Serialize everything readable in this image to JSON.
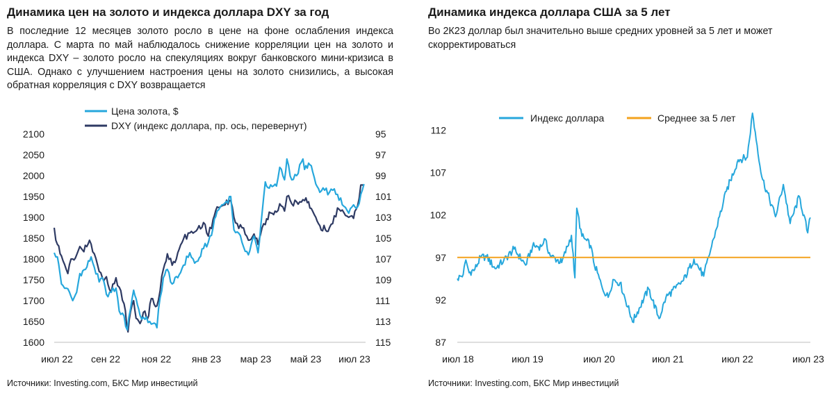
{
  "left": {
    "title": "Динамика цен на золото и индекса доллара DXY за год",
    "subtitle": "В последние 12 месяцев золото росло в цене на фоне ослабления индекса доллара. С марта по май наблюдалось снижение корреляции цен на золото и индекса DXY – золото росло на спекуляциях вокруг банковского мини-кризиса в США. Однако с улучшением настроения цены на золото снизились, а высокая обратная корреляция с DXY возвращается",
    "source": "Источники: Investing.com, БКС Мир инвестиций"
  },
  "right": {
    "title": "Динамика индекса доллара США за 5 лет",
    "subtitle_line1": "Во 2К23 доллар был значительно выше средних уровней за 5 лет и может",
    "subtitle_line2": "скорректироваться",
    "source": "Источники: Investing.com, БКС Мир инвестиций"
  },
  "chart_data": [
    {
      "type": "line",
      "x_tick_labels": [
        "июл 22",
        "сен 22",
        "ноя 22",
        "янв 23",
        "мар 23",
        "май 23",
        "июл 23"
      ],
      "y_left_ticks": [
        1600,
        1650,
        1700,
        1750,
        1800,
        1850,
        1900,
        1950,
        2000,
        2050,
        2100
      ],
      "y_right_ticks": [
        95,
        97,
        99,
        101,
        103,
        105,
        107,
        109,
        111,
        113,
        115
      ],
      "y_left_range": [
        1600,
        2100
      ],
      "y_right_range": [
        95,
        115
      ],
      "y_right_inverted": true,
      "grid": false,
      "legend_position": "top",
      "series": [
        {
          "name": "Цена золота, $",
          "axis": "left",
          "color": "#26a7dc",
          "points": [
            [
              "2022-06-27",
              1815
            ],
            [
              "2022-07-01",
              1805
            ],
            [
              "2022-07-06",
              1740
            ],
            [
              "2022-07-12",
              1730
            ],
            [
              "2022-07-18",
              1710
            ],
            [
              "2022-07-20",
              1700
            ],
            [
              "2022-07-25",
              1720
            ],
            [
              "2022-07-29",
              1765
            ],
            [
              "2022-08-05",
              1775
            ],
            [
              "2022-08-12",
              1805
            ],
            [
              "2022-08-16",
              1780
            ],
            [
              "2022-08-22",
              1745
            ],
            [
              "2022-08-26",
              1755
            ],
            [
              "2022-08-31",
              1715
            ],
            [
              "2022-09-06",
              1720
            ],
            [
              "2022-09-12",
              1730
            ],
            [
              "2022-09-16",
              1675
            ],
            [
              "2022-09-20",
              1670
            ],
            [
              "2022-09-26",
              1630
            ],
            [
              "2022-09-28",
              1660
            ],
            [
              "2022-10-04",
              1725
            ],
            [
              "2022-10-07",
              1705
            ],
            [
              "2022-10-12",
              1665
            ],
            [
              "2022-10-18",
              1655
            ],
            [
              "2022-10-24",
              1650
            ],
            [
              "2022-10-28",
              1645
            ],
            [
              "2022-11-02",
              1635
            ],
            [
              "2022-11-04",
              1680
            ],
            [
              "2022-11-10",
              1755
            ],
            [
              "2022-11-15",
              1775
            ],
            [
              "2022-11-21",
              1740
            ],
            [
              "2022-11-28",
              1755
            ],
            [
              "2022-12-05",
              1785
            ],
            [
              "2022-12-13",
              1815
            ],
            [
              "2022-12-19",
              1790
            ],
            [
              "2022-12-23",
              1795
            ],
            [
              "2022-12-30",
              1825
            ],
            [
              "2023-01-05",
              1840
            ],
            [
              "2023-01-11",
              1875
            ],
            [
              "2023-01-16",
              1915
            ],
            [
              "2023-01-20",
              1925
            ],
            [
              "2023-01-26",
              1935
            ],
            [
              "2023-02-02",
              1950
            ],
            [
              "2023-02-06",
              1870
            ],
            [
              "2023-02-10",
              1865
            ],
            [
              "2023-02-16",
              1840
            ],
            [
              "2023-02-24",
              1810
            ],
            [
              "2023-03-03",
              1855
            ],
            [
              "2023-03-08",
              1815
            ],
            [
              "2023-03-13",
              1910
            ],
            [
              "2023-03-17",
              1985
            ],
            [
              "2023-03-22",
              1970
            ],
            [
              "2023-03-31",
              1975
            ],
            [
              "2023-04-04",
              2020
            ],
            [
              "2023-04-10",
              1990
            ],
            [
              "2023-04-13",
              2040
            ],
            [
              "2023-04-19",
              1990
            ],
            [
              "2023-04-25",
              2000
            ],
            [
              "2023-05-03",
              2040
            ],
            [
              "2023-05-05",
              2015
            ],
            [
              "2023-05-10",
              2030
            ],
            [
              "2023-05-15",
              2010
            ],
            [
              "2023-05-19",
              1980
            ],
            [
              "2023-05-24",
              1960
            ],
            [
              "2023-05-30",
              1965
            ],
            [
              "2023-06-05",
              1960
            ],
            [
              "2023-06-09",
              1965
            ],
            [
              "2023-06-15",
              1955
            ],
            [
              "2023-06-21",
              1930
            ],
            [
              "2023-06-29",
              1910
            ],
            [
              "2023-07-05",
              1930
            ],
            [
              "2023-07-10",
              1925
            ],
            [
              "2023-07-14",
              1955
            ],
            [
              "2023-07-18",
              1980
            ]
          ]
        },
        {
          "name": "DXY (индекс доллара, пр. ось, перевернут)",
          "axis": "right",
          "color": "#2e3a63",
          "points": [
            [
              "2022-06-27",
              104.0
            ],
            [
              "2022-06-29",
              105.2
            ],
            [
              "2022-07-01",
              105.6
            ],
            [
              "2022-07-06",
              106.7
            ],
            [
              "2022-07-12",
              108.0
            ],
            [
              "2022-07-14",
              108.4
            ],
            [
              "2022-07-18",
              107.0
            ],
            [
              "2022-07-20",
              107.0
            ],
            [
              "2022-07-25",
              106.6
            ],
            [
              "2022-07-29",
              105.8
            ],
            [
              "2022-08-03",
              106.3
            ],
            [
              "2022-08-10",
              105.2
            ],
            [
              "2022-08-16",
              106.5
            ],
            [
              "2022-08-22",
              108.2
            ],
            [
              "2022-08-26",
              108.8
            ],
            [
              "2022-08-31",
              108.7
            ],
            [
              "2022-09-06",
              110.2
            ],
            [
              "2022-09-12",
              108.8
            ],
            [
              "2022-09-16",
              109.7
            ],
            [
              "2022-09-22",
              111.3
            ],
            [
              "2022-09-27",
              114.0
            ],
            [
              "2022-09-30",
              112.1
            ],
            [
              "2022-10-04",
              111.0
            ],
            [
              "2022-10-07",
              112.7
            ],
            [
              "2022-10-12",
              113.2
            ],
            [
              "2022-10-18",
              112.0
            ],
            [
              "2022-10-21",
              112.8
            ],
            [
              "2022-10-26",
              110.8
            ],
            [
              "2022-11-02",
              111.5
            ],
            [
              "2022-11-04",
              110.9
            ],
            [
              "2022-11-10",
              108.0
            ],
            [
              "2022-11-15",
              106.5
            ],
            [
              "2022-11-21",
              107.6
            ],
            [
              "2022-11-28",
              106.4
            ],
            [
              "2022-12-05",
              105.1
            ],
            [
              "2022-12-13",
              104.5
            ],
            [
              "2022-12-19",
              104.4
            ],
            [
              "2022-12-30",
              103.5
            ],
            [
              "2023-01-05",
              104.8
            ],
            [
              "2023-01-11",
              103.2
            ],
            [
              "2023-01-16",
              102.0
            ],
            [
              "2023-01-20",
              102.0
            ],
            [
              "2023-01-26",
              101.8
            ],
            [
              "2023-02-02",
              101.4
            ],
            [
              "2023-02-06",
              103.0
            ],
            [
              "2023-02-10",
              103.6
            ],
            [
              "2023-02-16",
              104.0
            ],
            [
              "2023-02-24",
              105.2
            ],
            [
              "2023-03-03",
              104.6
            ],
            [
              "2023-03-08",
              105.6
            ],
            [
              "2023-03-13",
              104.0
            ],
            [
              "2023-03-17",
              103.7
            ],
            [
              "2023-03-22",
              102.5
            ],
            [
              "2023-03-31",
              102.5
            ],
            [
              "2023-04-04",
              101.7
            ],
            [
              "2023-04-10",
              102.4
            ],
            [
              "2023-04-13",
              101.0
            ],
            [
              "2023-04-19",
              101.7
            ],
            [
              "2023-04-25",
              101.5
            ],
            [
              "2023-05-03",
              101.3
            ],
            [
              "2023-05-05",
              101.4
            ],
            [
              "2023-05-10",
              101.5
            ],
            [
              "2023-05-15",
              102.4
            ],
            [
              "2023-05-19",
              103.0
            ],
            [
              "2023-05-24",
              103.8
            ],
            [
              "2023-05-31",
              104.2
            ],
            [
              "2023-06-05",
              104.0
            ],
            [
              "2023-06-09",
              103.6
            ],
            [
              "2023-06-15",
              102.1
            ],
            [
              "2023-06-21",
              102.3
            ],
            [
              "2023-06-29",
              103.0
            ],
            [
              "2023-07-05",
              103.1
            ],
            [
              "2023-07-10",
              101.9
            ],
            [
              "2023-07-14",
              99.9
            ],
            [
              "2023-07-18",
              100.0
            ]
          ]
        }
      ]
    },
    {
      "type": "line",
      "x_tick_labels": [
        "июл 18",
        "июл 19",
        "июл 20",
        "июл 21",
        "июл 22",
        "июл 23"
      ],
      "y_ticks": [
        87,
        92,
        97,
        102,
        107,
        112
      ],
      "y_range": [
        87,
        114
      ],
      "grid": false,
      "legend_position": "top",
      "series": [
        {
          "name": "Индекс доллара",
          "color": "#26a7dc",
          "points": [
            [
              "2018-07-01",
              94.5
            ],
            [
              "2018-08-01",
              95.0
            ],
            [
              "2018-08-15",
              96.7
            ],
            [
              "2018-09-01",
              95.2
            ],
            [
              "2018-10-01",
              95.6
            ],
            [
              "2018-10-31",
              97.0
            ],
            [
              "2018-12-01",
              97.1
            ],
            [
              "2019-01-15",
              95.7
            ],
            [
              "2019-03-01",
              96.6
            ],
            [
              "2019-04-25",
              98.0
            ],
            [
              "2019-06-25",
              96.1
            ],
            [
              "2019-07-31",
              98.3
            ],
            [
              "2019-09-15",
              98.3
            ],
            [
              "2019-10-01",
              99.2
            ],
            [
              "2019-11-01",
              97.2
            ],
            [
              "2019-12-31",
              96.4
            ],
            [
              "2020-02-20",
              99.6
            ],
            [
              "2020-03-09",
              94.6
            ],
            [
              "2020-03-19",
              102.8
            ],
            [
              "2020-04-15",
              99.5
            ],
            [
              "2020-05-31",
              98.4
            ],
            [
              "2020-06-15",
              96.5
            ],
            [
              "2020-07-31",
              93.4
            ],
            [
              "2020-08-31",
              92.3
            ],
            [
              "2020-09-25",
              94.4
            ],
            [
              "2020-11-01",
              94.0
            ],
            [
              "2020-12-31",
              89.9
            ],
            [
              "2021-01-06",
              89.4
            ],
            [
              "2021-03-31",
              93.3
            ],
            [
              "2021-05-25",
              89.8
            ],
            [
              "2021-06-30",
              92.3
            ],
            [
              "2021-08-20",
              93.4
            ],
            [
              "2021-09-30",
              94.3
            ],
            [
              "2021-11-24",
              96.8
            ],
            [
              "2022-01-14",
              94.8
            ],
            [
              "2022-03-07",
              99.2
            ],
            [
              "2022-05-13",
              104.8
            ],
            [
              "2022-07-14",
              108.5
            ],
            [
              "2022-08-31",
              108.8
            ],
            [
              "2022-09-27",
              114.0
            ],
            [
              "2022-11-15",
              106.5
            ],
            [
              "2023-01-26",
              101.8
            ],
            [
              "2023-03-08",
              105.6
            ],
            [
              "2023-04-13",
              101.0
            ],
            [
              "2023-05-31",
              104.2
            ],
            [
              "2023-07-14",
              99.9
            ],
            [
              "2023-07-28",
              101.7
            ]
          ]
        },
        {
          "name": "Среднее за 5 лет",
          "color": "#f3a21d",
          "points": [
            [
              "2018-07-01",
              97.0
            ],
            [
              "2023-07-28",
              97.0
            ]
          ]
        }
      ]
    }
  ]
}
